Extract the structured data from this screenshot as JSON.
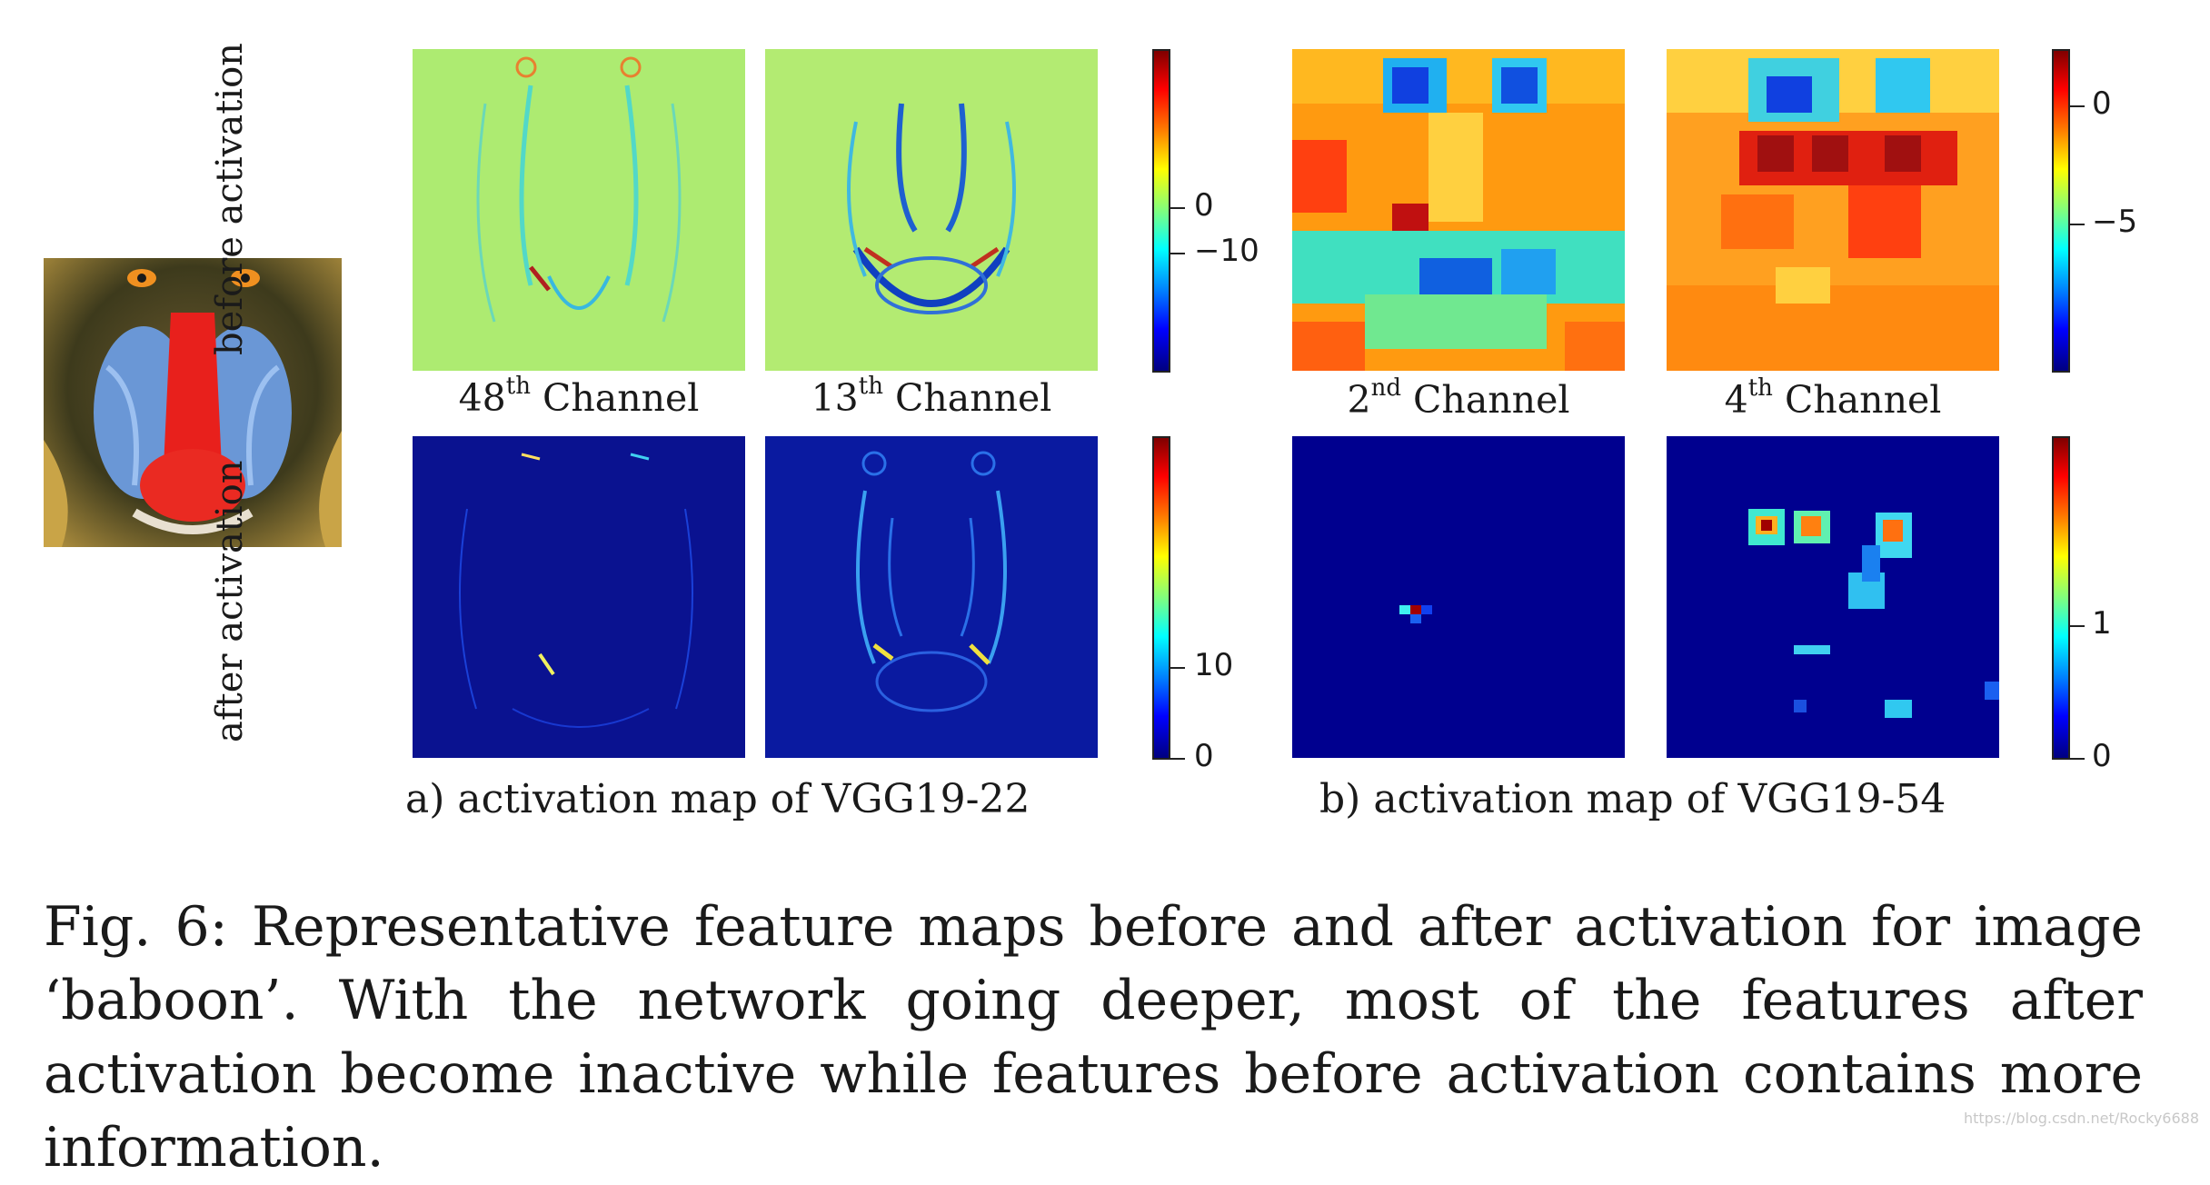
{
  "figure": {
    "row_labels": {
      "top": "before activation",
      "bottom": "after activation"
    },
    "panel_a": {
      "channel_labels": [
        {
          "num": "48",
          "sup": "th",
          "text": "Channel"
        },
        {
          "num": "13",
          "sup": "th",
          "text": "Channel"
        }
      ],
      "colorbar_top_ticks": [
        "0",
        "−10"
      ],
      "colorbar_bottom_ticks": [
        "10",
        "0"
      ],
      "subcaption": "a) activation map of  VGG19-22"
    },
    "panel_b": {
      "channel_labels": [
        {
          "num": "2",
          "sup": "nd",
          "text": "Channel"
        },
        {
          "num": "4",
          "sup": "th",
          "text": "Channel"
        }
      ],
      "colorbar_top_ticks": [
        "0",
        "−5"
      ],
      "colorbar_bottom_ticks": [
        "1",
        "0"
      ],
      "subcaption": "b) activation map of  VGG19-54"
    },
    "colormap": [
      "#00007f",
      "#0000ff",
      "#007fff",
      "#00ffff",
      "#7fff7f",
      "#ffff00",
      "#ff7f00",
      "#ff0000",
      "#7f0000"
    ],
    "caption": "Fig. 6: Representative feature maps before and after activation for image ‘baboon’. With the network going deeper, most of the features after activation become inactive while features before activation contains more information.",
    "watermark": "https://blog.csdn.net/Rocky6688"
  }
}
